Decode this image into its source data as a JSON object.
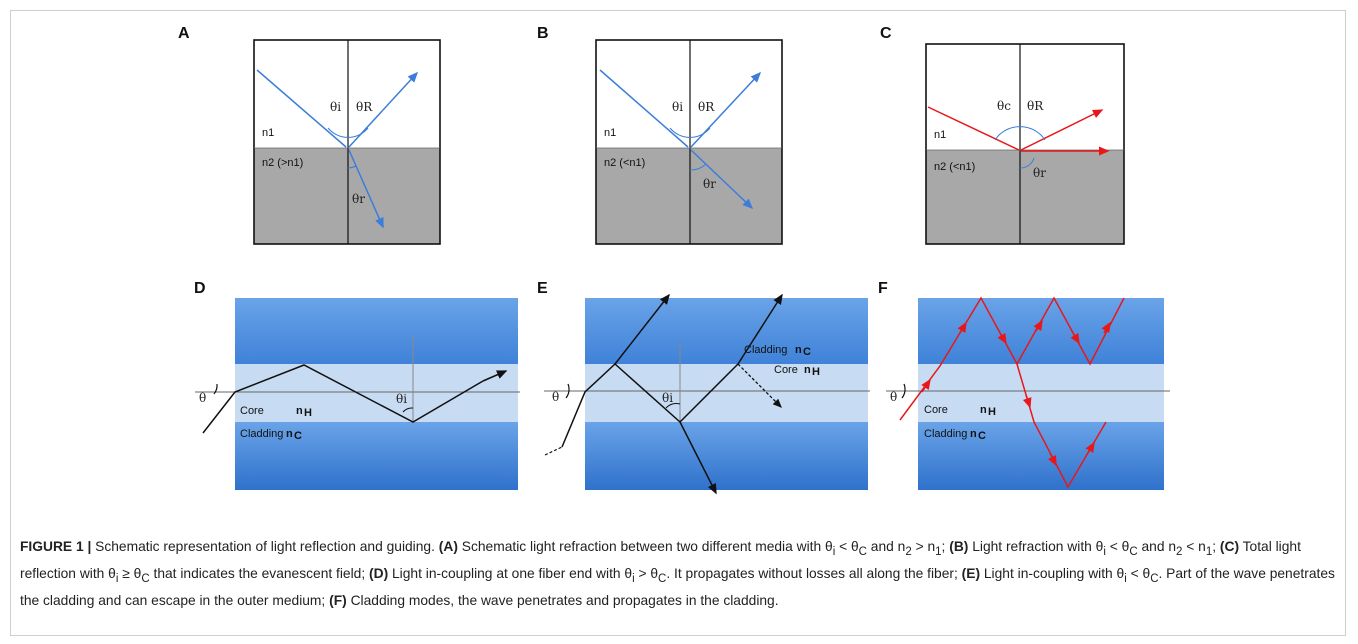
{
  "panels": {
    "A": {
      "tag": "A",
      "theta_i": "θi",
      "theta_R": "θR",
      "theta_r": "θr",
      "n1": "n1",
      "n2": "n2 (>n1)"
    },
    "B": {
      "tag": "B",
      "theta_i": "θi",
      "theta_R": "θR",
      "theta_r": "θr",
      "n1": "n1",
      "n2": "n2 (<n1)"
    },
    "C": {
      "tag": "C",
      "theta_c": "θc",
      "theta_R": "θR",
      "theta_r": "θr",
      "n1": "n1",
      "n2": "n2 (<n1)"
    },
    "D": {
      "tag": "D",
      "theta": "θ",
      "theta_i": "θi",
      "core": "Core",
      "core_n": "n",
      "core_sub": "H",
      "cladding": "Cladding",
      "cladding_n": "n",
      "cladding_sub": "C"
    },
    "E": {
      "tag": "E",
      "theta": "θ",
      "theta_i": "θi",
      "core": "Core",
      "core_n": "n",
      "core_sub": "H",
      "cladding": "Cladding",
      "cladding_n": "n",
      "cladding_sub": "C"
    },
    "F": {
      "tag": "F",
      "theta": "θ",
      "core": "Core",
      "core_n": "n",
      "core_sub": "H",
      "cladding": "Cladding",
      "cladding_n": "n",
      "cladding_sub": "C"
    }
  },
  "colors": {
    "blue_ray": "#3b7dd8",
    "red_ray": "#e8171a",
    "grey_medium": "#a8a8a8",
    "cladding_blue": "#4d8fe0",
    "core_blue": "#c7dcf3"
  },
  "caption": {
    "figure_label": "FIGURE 1 |",
    "lead": " Schematic representation of light reflection and guiding. ",
    "a_tag": "(A)",
    "a_text": " Schematic light refraction between two different media with θ",
    "b_tag": "(B)",
    "c_tag": "(C)",
    "d_tag": "(D)",
    "e_tag": "(E)",
    "f_tag": "(F)"
  }
}
